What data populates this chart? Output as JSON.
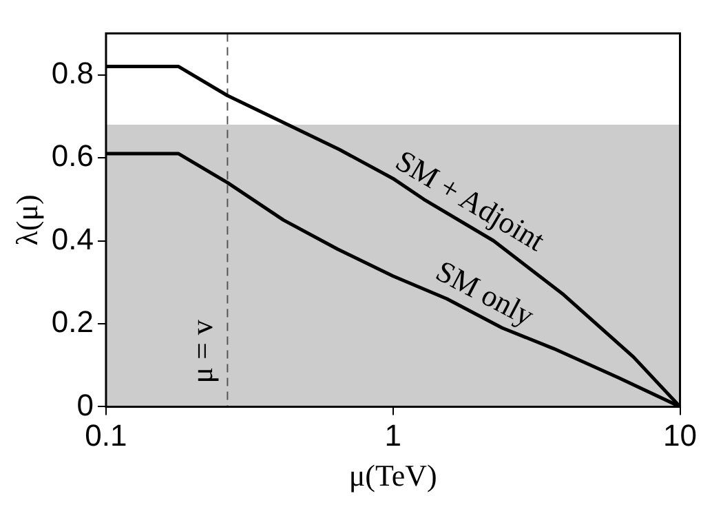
{
  "chart_data": {
    "type": "line",
    "xlabel": "μ(TeV)",
    "ylabel": "λ(μ)",
    "log": "x",
    "xlim": [
      0.1,
      10
    ],
    "xticks": [
      0.1,
      1,
      10
    ],
    "ylim": [
      0,
      0.9
    ],
    "yticks": [
      0,
      0.2,
      0.4,
      0.6,
      0.8
    ],
    "grid": false,
    "legend": false,
    "marker": "none",
    "line_style": "solid",
    "series": [
      {
        "name": "SM only",
        "color": "#000000",
        "x": [
          0.1,
          0.179,
          0.265,
          0.415,
          0.64,
          1,
          1.54,
          2.4,
          3.63,
          6.1,
          10
        ],
        "values": [
          0.61,
          0.61,
          0.54,
          0.45,
          0.38,
          0.315,
          0.26,
          0.19,
          0.14,
          0.07,
          0
        ]
      },
      {
        "name": "SM + Adjoint",
        "color": "#000000",
        "x": [
          0.1,
          0.179,
          0.265,
          0.65,
          1,
          1.28,
          2.24,
          3.93,
          6.88,
          10
        ],
        "values": [
          0.82,
          0.82,
          0.75,
          0.62,
          0.55,
          0.5,
          0.4,
          0.27,
          0.12,
          0
        ]
      }
    ],
    "ref_lines": [
      {
        "axis": "x",
        "value": 0.265,
        "label": "μ = v",
        "color": "#555555",
        "line_style": "dashed"
      }
    ],
    "bands": [
      {
        "axis": "y",
        "from": 0,
        "to": 0.68,
        "color": "#cccccc"
      }
    ]
  }
}
